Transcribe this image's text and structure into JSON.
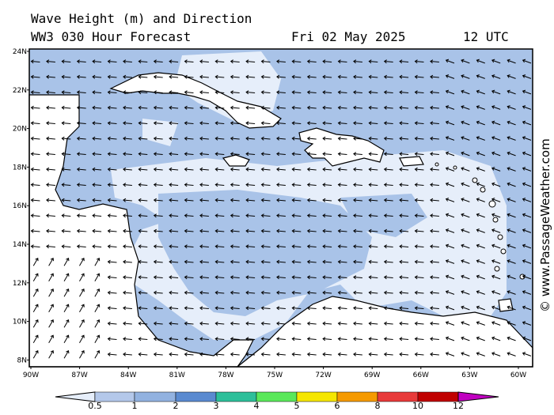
{
  "title": {
    "line1": "Wave Height (m) and Direction",
    "line2": "WW3 030 Hour Forecast",
    "date": "Fri 02 May 2025",
    "time": "12 UTC"
  },
  "copyright": "© www.PassageWeather.com",
  "axes": {
    "lat_labels": [
      "24N",
      "22N",
      "20N",
      "18N",
      "16N",
      "14N",
      "12N",
      "10N",
      "8N"
    ],
    "lon_labels": [
      "90W",
      "87W",
      "84W",
      "81W",
      "78W",
      "75W",
      "72W",
      "69W",
      "66W",
      "63W",
      "60W"
    ]
  },
  "colorbar": {
    "labels": [
      "0.5",
      "1",
      "2",
      "3",
      "4",
      "5",
      "6",
      "8",
      "10",
      "12"
    ],
    "colors": [
      "#e6eefa",
      "#b4c8ea",
      "#92b2e0",
      "#5a8ad0",
      "#2dbf9a",
      "#5ae85a",
      "#f5e600",
      "#f59a00",
      "#e83a3a",
      "#c00000",
      "#c000c0"
    ]
  },
  "map_colors": {
    "sea_low": "#e6eefa",
    "sea_mid": "#a9c3e8",
    "land": "#ffffff"
  }
}
